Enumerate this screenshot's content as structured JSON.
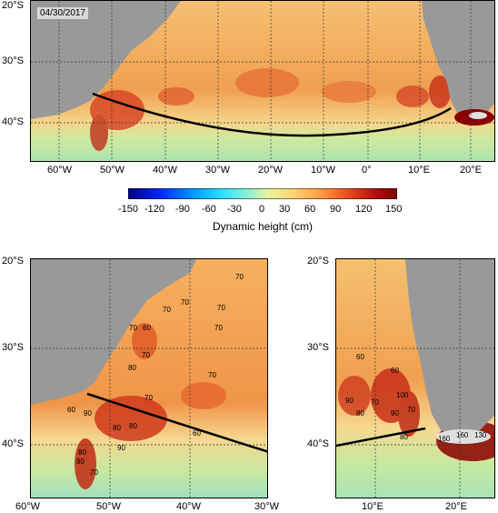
{
  "date_label": "04/30/2017",
  "top_map": {
    "lon_labels": [
      "60°W",
      "50°W",
      "40°W",
      "30°W",
      "20°W",
      "10°W",
      "0°",
      "10°E",
      "20°E"
    ],
    "lat_labels": [
      "20°S",
      "30°S",
      "40°S"
    ]
  },
  "colorbar": {
    "ticks": [
      "-150",
      "-120",
      "-90",
      "-60",
      "-30",
      "0",
      "30",
      "60",
      "90",
      "120",
      "150"
    ],
    "title": "Dynamic height (cm)",
    "colors": [
      "#00007f",
      "#0030ff",
      "#00a8ff",
      "#2fe7ff",
      "#8ef5d0",
      "#e6f7a0",
      "#ffd070",
      "#ff9a40",
      "#e85020",
      "#b01010",
      "#800000"
    ]
  },
  "bottom_left_map": {
    "lon_labels": [
      "60°W",
      "50°W",
      "40°W",
      "30°W"
    ],
    "lat_labels": [
      "20°S",
      "30°S",
      "40°S"
    ],
    "contour_labels": [
      "70",
      "70",
      "70",
      "70",
      "70",
      "60",
      "70",
      "80",
      "70",
      "70",
      "60",
      "90",
      "80",
      "80",
      "80",
      "90",
      "90",
      "70",
      "60",
      "70"
    ]
  },
  "bottom_right_map": {
    "lon_labels": [
      "10°E",
      "20°E"
    ],
    "lat_labels": [
      "20°S",
      "30°S",
      "40°S"
    ],
    "contour_labels": [
      "60",
      "60",
      "90",
      "70",
      "100",
      "90",
      "80",
      "80",
      "70",
      "160",
      "130",
      "160"
    ]
  },
  "colors": {
    "land": "#999999",
    "ocean_warm": "#f0a050",
    "ocean_cool": "#b8e8a0",
    "section_line": "#000000"
  }
}
